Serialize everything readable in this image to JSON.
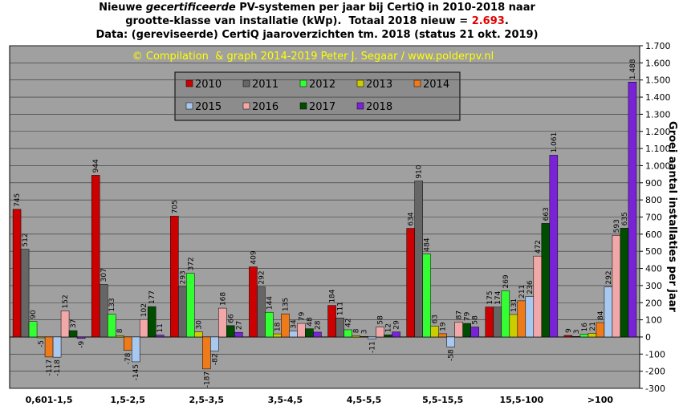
{
  "chart_data": {
    "type": "bar",
    "title": {
      "line1": [
        "Nieuwe ",
        "gecertificeerde",
        " PV-systemen per jaar bij CertiQ in 2010-2018 naar"
      ],
      "line2": "grootte-klasse van installatie (kWp).  Totaal 2018 nieuw = ",
      "total": "2.693",
      "line2_end": ".",
      "line3": "Data: (gereviseerde) CertiQ jaaroverzichten tm. 2018 (status 21 okt. 2019)"
    },
    "credit": "© Compilation  & graph 2014-2019 Peter J. Segaar / www.polderpv.nl",
    "y_label": "Groei aantal installaties per jaar",
    "categories": [
      "0,601-1,5",
      "1,5-2,5",
      "2,5-3,5",
      "3,5-4,5",
      "4,5-5,5",
      "5,5-15,5",
      "15,5-100",
      ">100"
    ],
    "series": [
      {
        "name": "2010",
        "color": "#cc0000",
        "values": [
          745,
          944,
          705,
          409,
          184,
          634,
          175,
          9
        ]
      },
      {
        "name": "2011",
        "color": "#666666",
        "values": [
          512,
          307,
          293,
          292,
          111,
          910,
          174,
          3
        ]
      },
      {
        "name": "2012",
        "color": "#33ff33",
        "values": [
          90,
          133,
          372,
          144,
          42,
          484,
          269,
          16
        ]
      },
      {
        "name": "2013",
        "color": "#cccc00",
        "values": [
          -5,
          8,
          30,
          18,
          8,
          63,
          131,
          21
        ]
      },
      {
        "name": "2014",
        "color": "#ee7a1a",
        "values": [
          -117,
          -78,
          -187,
          135,
          3,
          19,
          211,
          84
        ]
      },
      {
        "name": "2015",
        "color": "#a8c8f0",
        "values": [
          -118,
          -145,
          -82,
          34,
          -11,
          -58,
          236,
          292
        ]
      },
      {
        "name": "2016",
        "color": "#f2a8a8",
        "values": [
          152,
          102,
          168,
          79,
          58,
          87,
          472,
          593
        ]
      },
      {
        "name": "2017",
        "color": "#004d00",
        "values": [
          37,
          177,
          66,
          48,
          12,
          79,
          663,
          635
        ]
      },
      {
        "name": "2018",
        "color": "#7a22d8",
        "values": [
          -9,
          11,
          27,
          28,
          29,
          58,
          1061,
          1488
        ],
        "value_labels": [
          "-9",
          "11",
          "27",
          "28",
          "29",
          "58",
          "1.061",
          "1.488"
        ]
      }
    ],
    "ylim": [
      -300,
      1700
    ],
    "yticks": [
      -300,
      -200,
      -100,
      0,
      100,
      200,
      300,
      400,
      500,
      600,
      700,
      800,
      900,
      {
        "value": 1000,
        "label": "1.000"
      },
      {
        "value": 1100,
        "label": "1.100"
      },
      {
        "value": 1200,
        "label": "1.200"
      },
      {
        "value": 1300,
        "label": "1.300"
      },
      {
        "value": 1400,
        "label": "1.400"
      },
      {
        "value": 1500,
        "label": "1.500"
      },
      {
        "value": 1600,
        "label": "1.600"
      },
      {
        "value": 1700,
        "label": "1.700"
      }
    ],
    "grid": true
  }
}
